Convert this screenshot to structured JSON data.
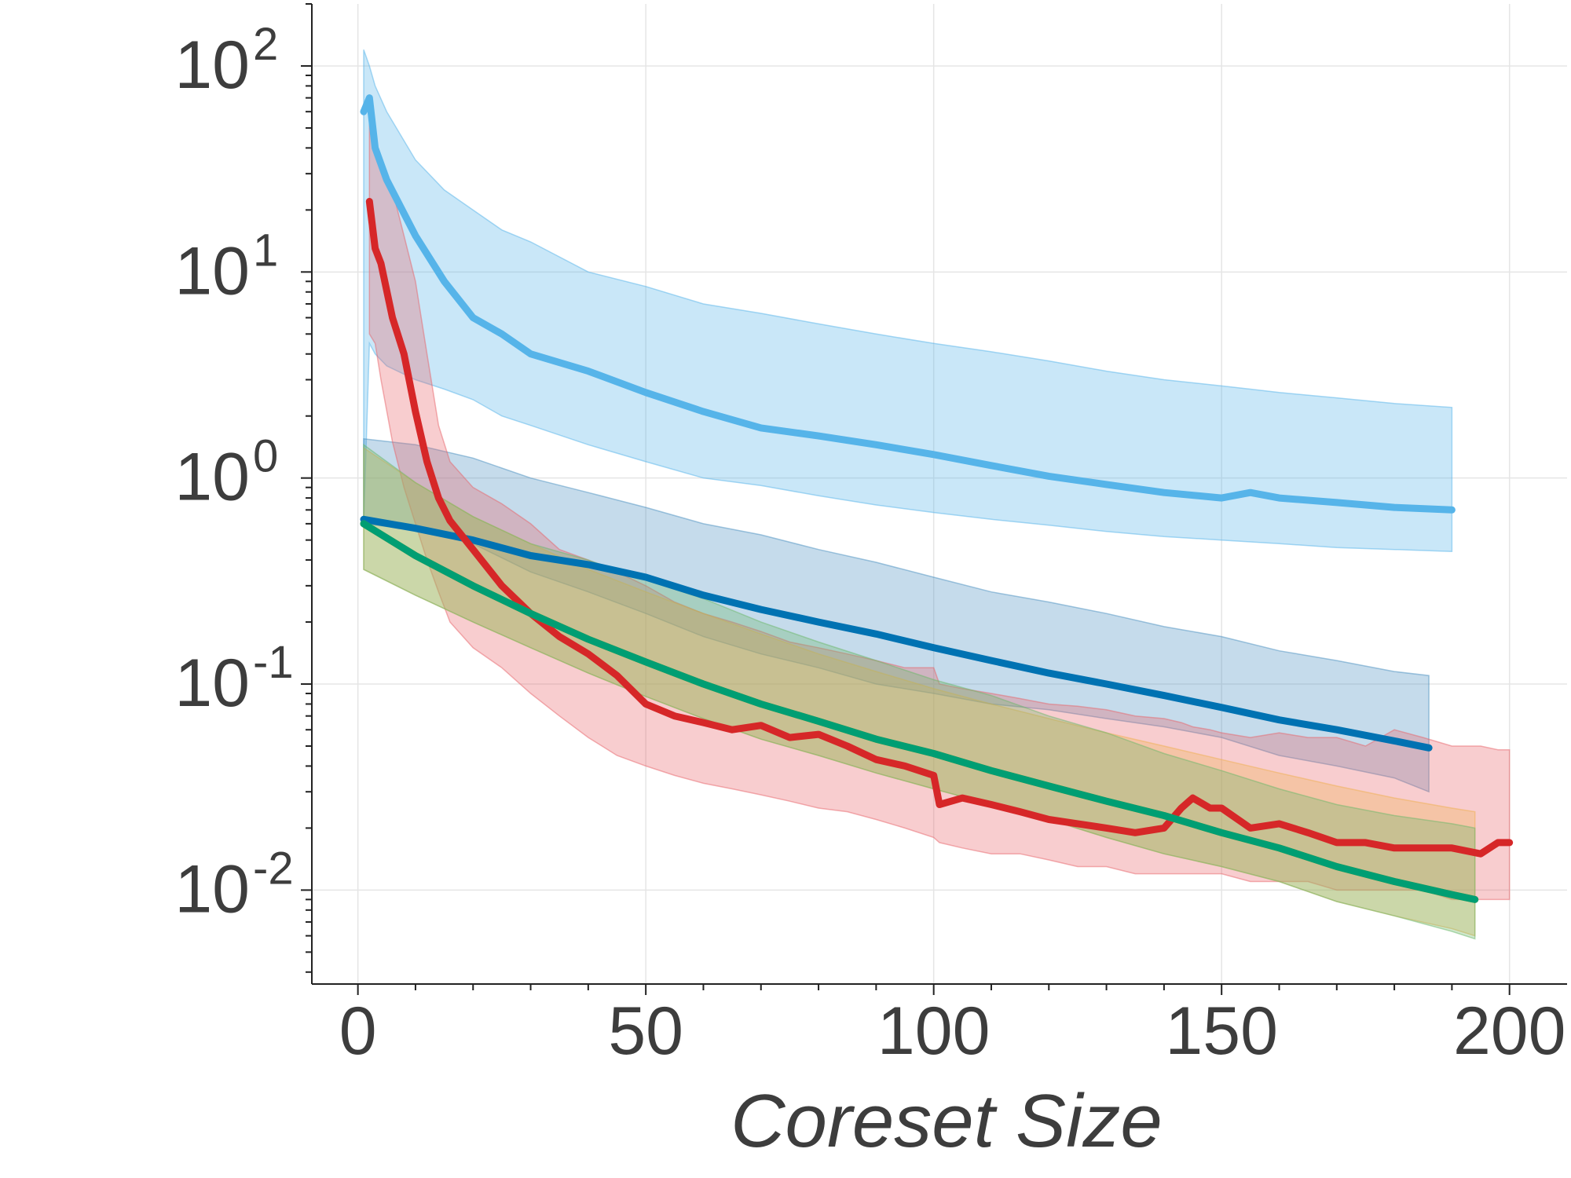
{
  "chart_data": {
    "type": "line",
    "title": "",
    "xlabel": "Coreset Size",
    "ylabel": "",
    "xscale": "linear",
    "yscale": "log",
    "xlim": [
      -8,
      210
    ],
    "ylim": [
      0.0035,
      200
    ],
    "grid": true,
    "legend": "none",
    "x_ticks": [
      {
        "value": 0,
        "label": "0"
      },
      {
        "value": 50,
        "label": "50"
      },
      {
        "value": 100,
        "label": "100"
      },
      {
        "value": 150,
        "label": "150"
      },
      {
        "value": 200,
        "label": "200"
      }
    ],
    "y_ticks": [
      {
        "value": 0.01,
        "base": "10",
        "exp": "-2"
      },
      {
        "value": 0.1,
        "base": "10",
        "exp": "-1"
      },
      {
        "value": 1,
        "base": "10",
        "exp": "0"
      },
      {
        "value": 10,
        "base": "10",
        "exp": "1"
      },
      {
        "value": 100,
        "base": "10",
        "exp": "2"
      }
    ],
    "series": [
      {
        "color": "#56b4e9",
        "band_color": "#56b4e9",
        "x": [
          1,
          2,
          3,
          5,
          10,
          15,
          20,
          25,
          30,
          40,
          50,
          60,
          70,
          80,
          90,
          100,
          110,
          120,
          130,
          140,
          150,
          155,
          160,
          170,
          180,
          190
        ],
        "y": [
          60,
          70,
          40,
          28,
          15,
          9,
          6,
          5,
          4,
          3.3,
          2.6,
          2.1,
          1.75,
          1.6,
          1.45,
          1.3,
          1.15,
          1.02,
          0.93,
          0.85,
          0.8,
          0.85,
          0.8,
          0.76,
          0.72,
          0.7
        ],
        "lower": [
          0.6,
          4.5,
          4,
          3.5,
          3,
          2.7,
          2.4,
          2.0,
          1.8,
          1.45,
          1.2,
          1.0,
          0.92,
          0.82,
          0.74,
          0.68,
          0.63,
          0.59,
          0.55,
          0.52,
          0.5,
          0.49,
          0.48,
          0.46,
          0.45,
          0.44
        ],
        "upper": [
          120,
          100,
          80,
          60,
          35,
          25,
          20,
          16,
          14,
          10,
          8.5,
          7,
          6.3,
          5.6,
          5.0,
          4.5,
          4.1,
          3.7,
          3.3,
          3.0,
          2.8,
          2.7,
          2.6,
          2.45,
          2.3,
          2.2
        ]
      },
      {
        "color": "#0072b2",
        "band_color": "#4a90c0",
        "x": [
          1,
          10,
          20,
          30,
          40,
          50,
          60,
          70,
          80,
          90,
          100,
          110,
          120,
          130,
          140,
          150,
          160,
          170,
          180,
          186
        ],
        "y": [
          0.63,
          0.57,
          0.5,
          0.42,
          0.38,
          0.33,
          0.27,
          0.23,
          0.2,
          0.175,
          0.15,
          0.13,
          0.113,
          0.1,
          0.088,
          0.077,
          0.067,
          0.06,
          0.053,
          0.049
        ],
        "lower": [
          0.6,
          0.56,
          0.48,
          0.35,
          0.28,
          0.22,
          0.17,
          0.14,
          0.12,
          0.1,
          0.09,
          0.08,
          0.075,
          0.068,
          0.062,
          0.055,
          0.045,
          0.04,
          0.035,
          0.03
        ],
        "upper": [
          1.55,
          1.45,
          1.25,
          1.0,
          0.85,
          0.72,
          0.6,
          0.53,
          0.45,
          0.39,
          0.33,
          0.28,
          0.25,
          0.22,
          0.19,
          0.17,
          0.145,
          0.13,
          0.115,
          0.11
        ]
      },
      {
        "color": "#d62728",
        "band_color": "#e8636a",
        "x": [
          2,
          3,
          4,
          6,
          8,
          10,
          12,
          14,
          16,
          20,
          25,
          30,
          35,
          40,
          45,
          50,
          55,
          60,
          65,
          70,
          75,
          80,
          85,
          90,
          95,
          100,
          101,
          105,
          110,
          115,
          120,
          125,
          130,
          135,
          140,
          143,
          145,
          148,
          150,
          155,
          160,
          165,
          170,
          175,
          180,
          185,
          190,
          195,
          198,
          200
        ],
        "y": [
          22,
          13,
          11,
          6,
          4,
          2.1,
          1.2,
          0.8,
          0.62,
          0.45,
          0.3,
          0.22,
          0.17,
          0.14,
          0.11,
          0.08,
          0.07,
          0.065,
          0.06,
          0.063,
          0.055,
          0.057,
          0.05,
          0.043,
          0.04,
          0.036,
          0.026,
          0.028,
          0.026,
          0.024,
          0.022,
          0.021,
          0.02,
          0.019,
          0.02,
          0.025,
          0.028,
          0.025,
          0.025,
          0.02,
          0.021,
          0.019,
          0.017,
          0.017,
          0.016,
          0.016,
          0.016,
          0.015,
          0.017,
          0.017
        ],
        "lower": [
          5,
          4.5,
          3,
          1.5,
          0.9,
          0.6,
          0.4,
          0.28,
          0.2,
          0.15,
          0.12,
          0.09,
          0.07,
          0.055,
          0.045,
          0.04,
          0.036,
          0.033,
          0.031,
          0.029,
          0.027,
          0.025,
          0.024,
          0.022,
          0.02,
          0.018,
          0.017,
          0.016,
          0.015,
          0.015,
          0.014,
          0.013,
          0.013,
          0.012,
          0.012,
          0.012,
          0.012,
          0.012,
          0.012,
          0.011,
          0.011,
          0.011,
          0.01,
          0.01,
          0.01,
          0.01,
          0.009,
          0.009,
          0.009,
          0.009
        ],
        "upper": [
          55,
          40,
          35,
          25,
          15,
          9,
          4,
          1.8,
          1.2,
          0.9,
          0.75,
          0.6,
          0.45,
          0.4,
          0.35,
          0.3,
          0.25,
          0.22,
          0.2,
          0.18,
          0.16,
          0.15,
          0.14,
          0.13,
          0.12,
          0.12,
          0.1,
          0.095,
          0.09,
          0.085,
          0.08,
          0.078,
          0.075,
          0.07,
          0.068,
          0.065,
          0.062,
          0.06,
          0.058,
          0.055,
          0.058,
          0.055,
          0.055,
          0.05,
          0.06,
          0.055,
          0.05,
          0.05,
          0.048,
          0.048
        ]
      },
      {
        "color": "#e69f00",
        "band_color": "#f0b050",
        "x": [
          1,
          10,
          20,
          30,
          40,
          50,
          60,
          70,
          80,
          90,
          100,
          110,
          120,
          130,
          140,
          150,
          160,
          170,
          180,
          190,
          194
        ],
        "y": [
          0.6,
          0.42,
          0.3,
          0.22,
          0.165,
          0.128,
          0.1,
          0.08,
          0.066,
          0.054,
          0.046,
          0.038,
          0.032,
          0.027,
          0.023,
          0.019,
          0.016,
          0.013,
          0.011,
          0.0095,
          0.009
        ],
        "lower": [
          0.36,
          0.27,
          0.2,
          0.15,
          0.113,
          0.087,
          0.068,
          0.054,
          0.045,
          0.037,
          0.031,
          0.026,
          0.022,
          0.018,
          0.015,
          0.013,
          0.011,
          0.0088,
          0.0075,
          0.0065,
          0.006
        ],
        "upper": [
          1.4,
          0.95,
          0.65,
          0.48,
          0.36,
          0.28,
          0.22,
          0.175,
          0.14,
          0.115,
          0.095,
          0.08,
          0.068,
          0.058,
          0.05,
          0.043,
          0.037,
          0.032,
          0.028,
          0.025,
          0.024
        ]
      },
      {
        "color": "#009e73",
        "band_color": "#6bb86a",
        "x": [
          1,
          10,
          20,
          30,
          40,
          50,
          60,
          70,
          80,
          90,
          100,
          110,
          120,
          130,
          140,
          150,
          160,
          170,
          180,
          190,
          194
        ],
        "y": [
          0.6,
          0.42,
          0.3,
          0.22,
          0.165,
          0.128,
          0.1,
          0.08,
          0.066,
          0.054,
          0.046,
          0.038,
          0.032,
          0.027,
          0.023,
          0.019,
          0.016,
          0.013,
          0.011,
          0.0095,
          0.009
        ],
        "lower": [
          0.36,
          0.27,
          0.2,
          0.15,
          0.113,
          0.087,
          0.068,
          0.054,
          0.045,
          0.037,
          0.031,
          0.026,
          0.022,
          0.018,
          0.015,
          0.013,
          0.011,
          0.0088,
          0.0075,
          0.0063,
          0.0058
        ],
        "upper": [
          1.45,
          0.95,
          0.65,
          0.48,
          0.4,
          0.32,
          0.26,
          0.2,
          0.16,
          0.13,
          0.105,
          0.088,
          0.07,
          0.058,
          0.046,
          0.038,
          0.031,
          0.026,
          0.023,
          0.021,
          0.02
        ]
      }
    ]
  }
}
